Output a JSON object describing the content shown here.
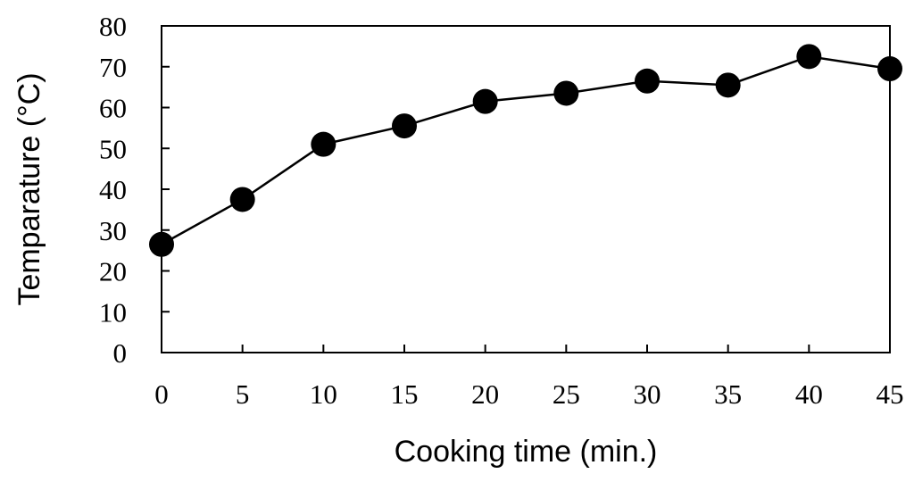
{
  "chart_data": {
    "type": "line",
    "xlabel": "Cooking time (min.)",
    "ylabel": "Temparature (°C)",
    "xlim": [
      0,
      45
    ],
    "ylim": [
      0,
      80
    ],
    "x_ticks": [
      0,
      5,
      10,
      15,
      20,
      25,
      30,
      35,
      40,
      45
    ],
    "y_ticks": [
      0,
      10,
      20,
      30,
      40,
      50,
      60,
      70,
      80
    ],
    "grid": false,
    "legend": "none",
    "marker": "filled-circle",
    "colors": {
      "line": "#000000",
      "marker": "#000000",
      "axes": "#000000"
    },
    "series": [
      {
        "x": [
          0,
          5,
          10,
          15,
          20,
          25,
          30,
          35,
          40,
          45
        ],
        "values": [
          26.5,
          37.5,
          51,
          55.5,
          61.5,
          63.5,
          66.5,
          65.5,
          72.5,
          69.5
        ]
      }
    ]
  }
}
